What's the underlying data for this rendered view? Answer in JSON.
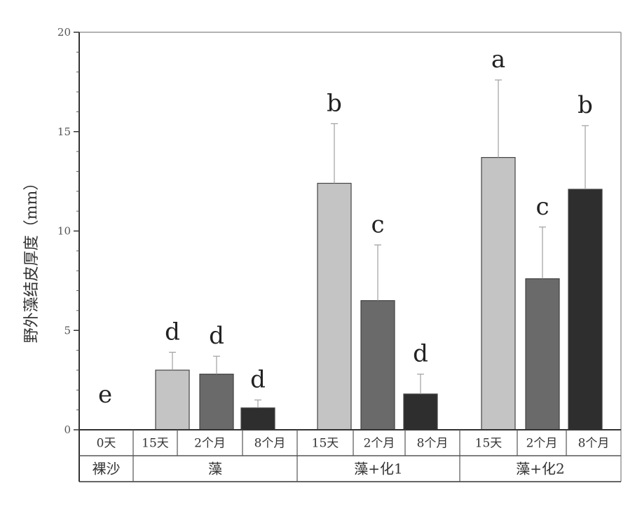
{
  "chart_data": {
    "type": "bar",
    "title": "",
    "xlabel": "",
    "ylabel": "野外藻结皮厚度（mm）",
    "ylim": [
      0,
      20
    ],
    "yticks": [
      "0",
      "5",
      "10",
      "15",
      "20"
    ],
    "grid": false,
    "legend": "none",
    "categories": [
      "0天",
      "15天",
      "2个月",
      "8个月",
      "15天",
      "2个月",
      "8个月",
      "15天",
      "2个月",
      "8个月"
    ],
    "groups": [
      {
        "label": "裸沙",
        "start": 0,
        "count": 1
      },
      {
        "label": "藻",
        "start": 1,
        "count": 3
      },
      {
        "label": "藻+化1",
        "start": 4,
        "count": 3
      },
      {
        "label": "藻+化2",
        "start": 7,
        "count": 3
      }
    ],
    "values": [
      0,
      3.0,
      2.8,
      1.1,
      12.4,
      6.5,
      1.8,
      13.7,
      7.6,
      12.1
    ],
    "errors": [
      0,
      0.9,
      0.9,
      0.4,
      3.0,
      2.8,
      1.0,
      3.9,
      2.6,
      3.2
    ],
    "significance": [
      "e",
      "d",
      "d",
      "d",
      "b",
      "c",
      "d",
      "a",
      "c",
      "b"
    ],
    "colors": {
      "15天": "#c4c4c4",
      "2个月": "#6a6a6a",
      "8个月": "#2e2e2e",
      "error_bar": "#a0a0a0"
    }
  }
}
